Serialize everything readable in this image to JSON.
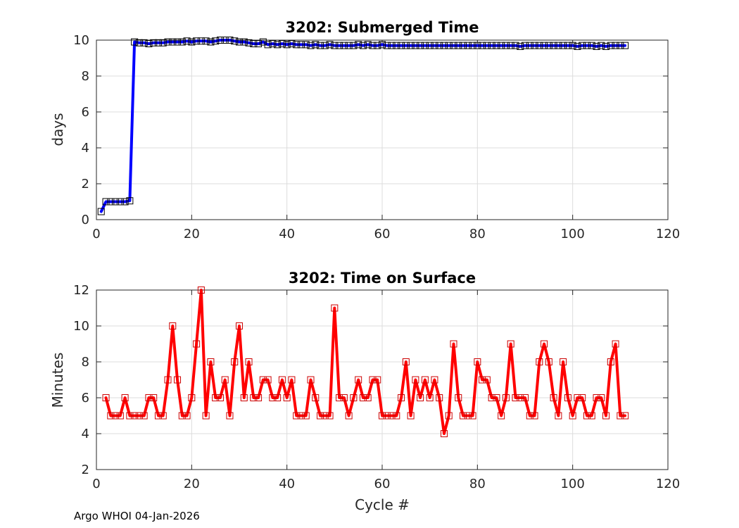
{
  "footer": "Argo WHOI 04-Jan-2026",
  "chart_data": [
    {
      "type": "line",
      "title": "3202: Submerged Time",
      "xlabel": "",
      "ylabel": "days",
      "xlim": [
        0,
        120
      ],
      "ylim": [
        0,
        10
      ],
      "xticks": [
        0,
        20,
        40,
        60,
        80,
        100,
        120
      ],
      "yticks": [
        0,
        2,
        4,
        6,
        8,
        10
      ],
      "grid": true,
      "series": [
        {
          "name": "submerged",
          "color": "#0000ff",
          "marker_color": "#000000",
          "marker": "square",
          "x": [
            1,
            2,
            3,
            4,
            5,
            6,
            7,
            8,
            9,
            10,
            11,
            12,
            13,
            14,
            15,
            16,
            17,
            18,
            19,
            20,
            21,
            22,
            23,
            24,
            25,
            26,
            27,
            28,
            29,
            30,
            31,
            32,
            33,
            34,
            35,
            36,
            37,
            38,
            39,
            40,
            41,
            42,
            43,
            44,
            45,
            46,
            47,
            48,
            49,
            50,
            51,
            52,
            53,
            54,
            55,
            56,
            57,
            58,
            59,
            60,
            61,
            62,
            63,
            64,
            65,
            66,
            67,
            68,
            69,
            70,
            71,
            72,
            73,
            74,
            75,
            76,
            77,
            78,
            79,
            80,
            81,
            82,
            83,
            84,
            85,
            86,
            87,
            88,
            89,
            90,
            91,
            92,
            93,
            94,
            95,
            96,
            97,
            98,
            99,
            100,
            101,
            102,
            103,
            104,
            105,
            106,
            107,
            108,
            109,
            110,
            111
          ],
          "values": [
            0.45,
            1.0,
            1.0,
            1.0,
            1.0,
            1.0,
            1.05,
            9.9,
            9.85,
            9.85,
            9.8,
            9.85,
            9.85,
            9.85,
            9.9,
            9.9,
            9.9,
            9.9,
            9.95,
            9.9,
            9.95,
            9.95,
            9.95,
            9.9,
            9.95,
            10.0,
            10.0,
            10.0,
            9.95,
            9.9,
            9.9,
            9.85,
            9.8,
            9.8,
            9.9,
            9.75,
            9.8,
            9.75,
            9.8,
            9.75,
            9.8,
            9.75,
            9.75,
            9.75,
            9.7,
            9.75,
            9.7,
            9.7,
            9.75,
            9.7,
            9.7,
            9.7,
            9.7,
            9.7,
            9.75,
            9.7,
            9.75,
            9.7,
            9.7,
            9.75,
            9.7,
            9.7,
            9.7,
            9.7,
            9.7,
            9.7,
            9.7,
            9.7,
            9.7,
            9.7,
            9.7,
            9.7,
            9.7,
            9.7,
            9.7,
            9.7,
            9.7,
            9.7,
            9.7,
            9.7,
            9.7,
            9.7,
            9.7,
            9.7,
            9.7,
            9.7,
            9.7,
            9.7,
            9.65,
            9.7,
            9.7,
            9.7,
            9.7,
            9.7,
            9.7,
            9.7,
            9.7,
            9.7,
            9.7,
            9.7,
            9.65,
            9.7,
            9.7,
            9.7,
            9.65,
            9.7,
            9.65,
            9.7,
            9.7,
            9.7,
            9.7
          ]
        }
      ]
    },
    {
      "type": "line",
      "title": "3202: Time on Surface",
      "xlabel": "Cycle #",
      "ylabel": "Minutes",
      "xlim": [
        0,
        120
      ],
      "ylim": [
        2,
        12
      ],
      "xticks": [
        0,
        20,
        40,
        60,
        80,
        100,
        120
      ],
      "yticks": [
        2,
        4,
        6,
        8,
        10,
        12
      ],
      "grid": true,
      "series": [
        {
          "name": "surface",
          "color": "#ff0000",
          "marker_color": "#cc0000",
          "marker": "square",
          "x": [
            2,
            3,
            4,
            5,
            6,
            7,
            8,
            9,
            10,
            11,
            12,
            13,
            14,
            15,
            16,
            17,
            18,
            19,
            20,
            21,
            22,
            23,
            24,
            25,
            26,
            27,
            28,
            29,
            30,
            31,
            32,
            33,
            34,
            35,
            36,
            37,
            38,
            39,
            40,
            41,
            42,
            43,
            44,
            45,
            46,
            47,
            48,
            49,
            50,
            51,
            52,
            53,
            54,
            55,
            56,
            57,
            58,
            59,
            60,
            61,
            62,
            63,
            64,
            65,
            66,
            67,
            68,
            69,
            70,
            71,
            72,
            73,
            74,
            75,
            76,
            77,
            78,
            79,
            80,
            81,
            82,
            83,
            84,
            85,
            86,
            87,
            88,
            89,
            90,
            91,
            92,
            93,
            94,
            95,
            96,
            97,
            98,
            99,
            100,
            101,
            102,
            103,
            104,
            105,
            106,
            107,
            108,
            109,
            110,
            111
          ],
          "values": [
            6,
            5,
            5,
            5,
            6,
            5,
            5,
            5,
            5,
            6,
            6,
            5,
            5,
            7,
            10,
            7,
            5,
            5,
            6,
            9,
            12,
            5,
            8,
            6,
            6,
            7,
            5,
            8,
            10,
            6,
            8,
            6,
            6,
            7,
            7,
            6,
            6,
            7,
            6,
            7,
            5,
            5,
            5,
            7,
            6,
            5,
            5,
            5,
            11,
            6,
            6,
            5,
            6,
            7,
            6,
            6,
            7,
            7,
            5,
            5,
            5,
            5,
            6,
            8,
            5,
            7,
            6,
            7,
            6,
            7,
            6,
            4,
            5,
            9,
            6,
            5,
            5,
            5,
            8,
            7,
            7,
            6,
            6,
            5,
            6,
            9,
            6,
            6,
            6,
            5,
            5,
            8,
            9,
            8,
            6,
            5,
            8,
            6,
            5,
            6,
            6,
            5,
            5,
            6,
            6,
            5,
            8,
            9,
            5,
            5
          ]
        }
      ]
    }
  ]
}
